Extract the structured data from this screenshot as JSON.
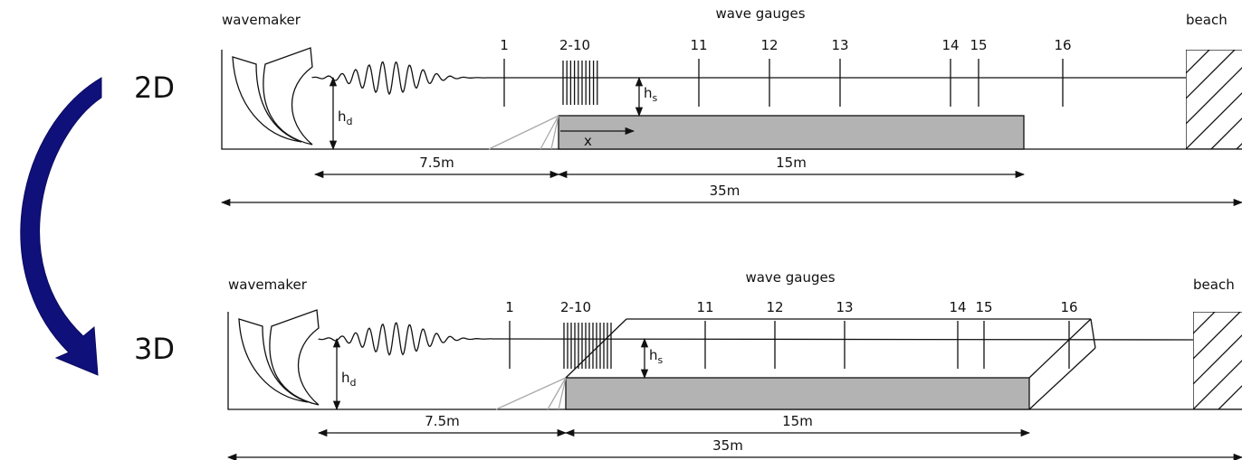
{
  "panels": [
    {
      "label": "2D",
      "wavemaker": "wavemaker",
      "gauges_title": "wave gauges",
      "beach": "beach",
      "gauges": [
        "1",
        "2-10",
        "11",
        "12",
        "13",
        "14",
        "15",
        "16"
      ],
      "depth_label": {
        "base": "h",
        "sub": "d"
      },
      "step_label": {
        "base": "h",
        "sub": "s"
      },
      "x_label": "x",
      "dims": [
        "7.5m",
        "15m",
        "35m"
      ]
    },
    {
      "label": "3D",
      "wavemaker": "wavemaker",
      "gauges_title": "wave gauges",
      "beach": "beach",
      "gauges": [
        "1",
        "2-10",
        "11",
        "12",
        "13",
        "14",
        "15",
        "16"
      ],
      "depth_label": {
        "base": "h",
        "sub": "d"
      },
      "step_label": {
        "base": "h",
        "sub": "s"
      },
      "dims": [
        "7.5m",
        "15m",
        "35m"
      ]
    }
  ]
}
